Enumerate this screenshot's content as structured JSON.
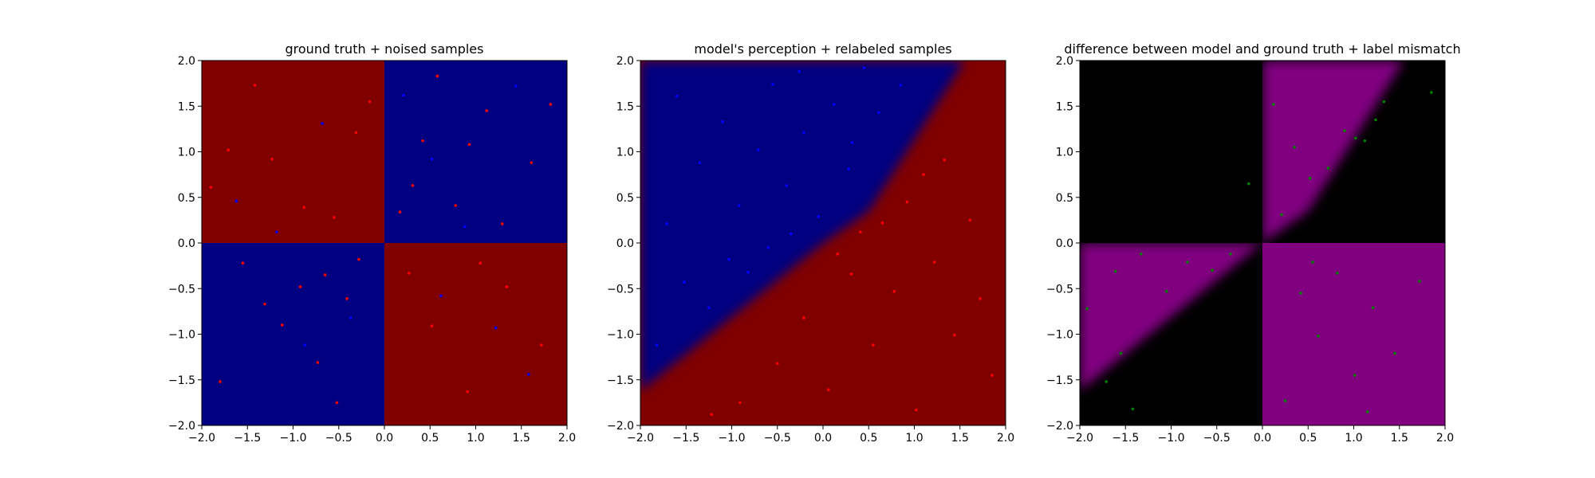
{
  "chart_data": [
    {
      "type": "scatter",
      "title": "ground truth + noised samples",
      "xlim": [
        -2.0,
        2.0
      ],
      "ylim": [
        -2.0,
        2.0
      ],
      "x_ticks": [
        "−2.0",
        "−1.5",
        "−1.0",
        "−0.5",
        "0.0",
        "0.5",
        "1.0",
        "1.5",
        "2.0"
      ],
      "y_ticks": [
        "−2.0",
        "−1.5",
        "−1.0",
        "−0.5",
        "0.0",
        "0.5",
        "1.0",
        "1.5",
        "2.0"
      ],
      "background": {
        "kind": "xor-quadrants",
        "positive_quadrants_color": "#000080",
        "negative_quadrants_color": "#800000"
      },
      "series": [
        {
          "color": "#ff0000",
          "points": [
            [
              -1.42,
              1.73
            ],
            [
              -0.88,
              0.39
            ],
            [
              -1.71,
              1.02
            ],
            [
              -0.16,
              1.55
            ],
            [
              -1.23,
              0.92
            ],
            [
              -0.55,
              0.28
            ],
            [
              -1.9,
              0.61
            ],
            [
              -0.31,
              1.21
            ],
            [
              0.42,
              1.12
            ],
            [
              0.78,
              0.41
            ],
            [
              1.12,
              1.45
            ],
            [
              0.31,
              0.63
            ],
            [
              1.61,
              0.88
            ],
            [
              0.58,
              1.83
            ],
            [
              1.29,
              0.21
            ],
            [
              0.17,
              0.34
            ],
            [
              0.93,
              1.08
            ],
            [
              1.82,
              1.52
            ],
            [
              -0.92,
              -0.48
            ],
            [
              -0.41,
              -0.61
            ],
            [
              -1.55,
              -0.22
            ],
            [
              -0.73,
              -1.31
            ],
            [
              -1.12,
              -0.9
            ],
            [
              -0.28,
              -0.18
            ],
            [
              -1.8,
              -1.52
            ],
            [
              -0.52,
              -1.75
            ],
            [
              -1.31,
              -0.67
            ],
            [
              -0.65,
              -0.35
            ],
            [
              0.52,
              -0.91
            ],
            [
              1.34,
              -0.48
            ],
            [
              0.91,
              -1.63
            ],
            [
              1.72,
              -1.12
            ],
            [
              0.27,
              -0.33
            ],
            [
              1.05,
              -0.22
            ]
          ]
        },
        {
          "color": "#0000ff",
          "points": [
            [
              -0.68,
              1.31
            ],
            [
              -1.18,
              0.12
            ],
            [
              0.52,
              0.92
            ],
            [
              1.44,
              1.72
            ],
            [
              -0.87,
              -1.12
            ],
            [
              0.62,
              -0.58
            ],
            [
              1.58,
              -1.44
            ],
            [
              -1.62,
              0.46
            ],
            [
              0.21,
              1.62
            ],
            [
              -0.37,
              -0.82
            ],
            [
              1.22,
              -0.93
            ],
            [
              0.88,
              0.18
            ]
          ]
        }
      ]
    },
    {
      "type": "scatter",
      "title": "model's perception + relabeled samples",
      "xlim": [
        -2.0,
        2.0
      ],
      "ylim": [
        -2.0,
        2.0
      ],
      "x_ticks": [
        "−2.0",
        "−1.5",
        "−1.0",
        "−0.5",
        "0.0",
        "0.5",
        "1.0",
        "1.5",
        "2.0"
      ],
      "y_ticks": [
        "−2.0",
        "−1.5",
        "−1.0",
        "−0.5",
        "0.0",
        "0.5",
        "1.0",
        "1.5",
        "2.0"
      ],
      "background": {
        "kind": "boundary",
        "boundary_points": [
          [
            -2.0,
            -1.62
          ],
          [
            0.0,
            0.0
          ],
          [
            0.5,
            0.35
          ],
          [
            1.55,
            2.0
          ]
        ],
        "upper_left_color": "#000080",
        "lower_right_color": "#800000"
      },
      "series": [
        {
          "color": "#0000ff",
          "points": [
            [
              -1.6,
              1.61
            ],
            [
              -1.35,
              0.88
            ],
            [
              -1.1,
              1.33
            ],
            [
              -0.92,
              0.41
            ],
            [
              -0.71,
              1.02
            ],
            [
              -0.55,
              1.74
            ],
            [
              -0.4,
              0.63
            ],
            [
              -0.21,
              1.21
            ],
            [
              -0.05,
              0.29
            ],
            [
              0.12,
              1.52
            ],
            [
              0.28,
              0.81
            ],
            [
              0.45,
              1.92
            ],
            [
              -1.82,
              -1.12
            ],
            [
              -1.52,
              -0.43
            ],
            [
              -1.25,
              -0.71
            ],
            [
              -1.03,
              -0.18
            ],
            [
              -0.82,
              -0.32
            ],
            [
              -0.6,
              -0.05
            ],
            [
              -0.35,
              0.1
            ],
            [
              0.32,
              1.1
            ],
            [
              0.61,
              1.43
            ],
            [
              0.85,
              1.73
            ],
            [
              -1.71,
              0.21
            ],
            [
              -0.26,
              1.88
            ]
          ]
        },
        {
          "color": "#ff0000",
          "points": [
            [
              -0.5,
              -1.32
            ],
            [
              -0.21,
              -0.82
            ],
            [
              0.06,
              -1.61
            ],
            [
              0.31,
              -0.34
            ],
            [
              0.55,
              -1.12
            ],
            [
              0.78,
              -0.53
            ],
            [
              1.02,
              -1.83
            ],
            [
              1.22,
              -0.21
            ],
            [
              1.44,
              -1.01
            ],
            [
              1.72,
              -0.61
            ],
            [
              0.41,
              0.12
            ],
            [
              0.92,
              0.45
            ],
            [
              1.33,
              0.91
            ],
            [
              1.61,
              0.25
            ],
            [
              -0.91,
              -1.75
            ],
            [
              0.16,
              -0.12
            ],
            [
              1.85,
              -1.45
            ],
            [
              0.65,
              0.22
            ],
            [
              -1.22,
              -1.88
            ],
            [
              1.1,
              0.75
            ]
          ]
        }
      ]
    },
    {
      "type": "scatter",
      "title": "difference between model and ground truth + label mismatch",
      "xlim": [
        -2.0,
        2.0
      ],
      "ylim": [
        -2.0,
        2.0
      ],
      "x_ticks": [
        "−2.0",
        "−1.5",
        "−1.0",
        "−0.5",
        "0.0",
        "0.5",
        "1.0",
        "1.5",
        "2.0"
      ],
      "y_ticks": [
        "−2.0",
        "−1.5",
        "−1.0",
        "−0.5",
        "0.0",
        "0.5",
        "1.0",
        "1.5",
        "2.0"
      ],
      "background": {
        "kind": "mismatch",
        "mismatch_color": "#800080",
        "match_color": "#000000"
      },
      "series": [
        {
          "color": "#008000",
          "points": [
            [
              0.12,
              1.52
            ],
            [
              0.21,
              0.31
            ],
            [
              0.35,
              1.05
            ],
            [
              0.52,
              0.71
            ],
            [
              0.72,
              0.82
            ],
            [
              0.9,
              1.23
            ],
            [
              1.02,
              1.15
            ],
            [
              1.12,
              1.12
            ],
            [
              1.24,
              1.35
            ],
            [
              1.33,
              1.55
            ],
            [
              1.85,
              1.65
            ],
            [
              0.42,
              -0.55
            ],
            [
              0.61,
              -1.02
            ],
            [
              0.82,
              -0.33
            ],
            [
              1.01,
              -1.45
            ],
            [
              1.21,
              -0.71
            ],
            [
              1.45,
              -1.21
            ],
            [
              1.72,
              -0.42
            ],
            [
              0.25,
              -1.73
            ],
            [
              0.55,
              -0.21
            ],
            [
              -1.92,
              -0.72
            ],
            [
              -1.61,
              -0.31
            ],
            [
              -1.33,
              -0.12
            ],
            [
              -1.05,
              -0.53
            ],
            [
              -0.82,
              -0.21
            ],
            [
              -0.55,
              -0.3
            ],
            [
              -0.35,
              -0.12
            ],
            [
              -1.71,
              -1.52
            ],
            [
              -1.42,
              -1.82
            ],
            [
              -1.55,
              -1.21
            ],
            [
              -0.15,
              0.65
            ],
            [
              1.15,
              -1.85
            ]
          ]
        }
      ]
    }
  ]
}
